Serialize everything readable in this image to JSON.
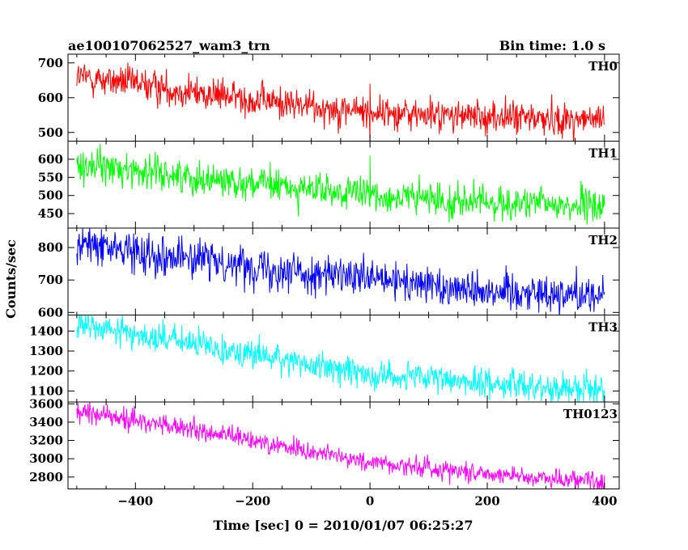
{
  "header": {
    "title": "ae100107062527_wam3_trn",
    "bin_time": "Bin time: 1.0 s"
  },
  "axes": {
    "xlabel": "Time [sec] 0 = 2010/01/07 06:25:27",
    "ylabel": "Counts/sec"
  },
  "chart_data": {
    "type": "line",
    "title": "ae100107062527_wam3_trn",
    "subtitle": "Bin time: 1.0 s",
    "xlabel": "Time [sec] 0 = 2010/01/07 06:25:27",
    "ylabel": "Counts/sec",
    "xlim": [
      -515,
      425
    ],
    "x_ticks": [
      -400,
      -200,
      0,
      200,
      400
    ],
    "x_range": [
      -500,
      400
    ],
    "bin_time_s": 1.0,
    "grid": false,
    "panels": [
      {
        "name": "TH0",
        "color": "#ff0000",
        "ylim": [
          475,
          725
        ],
        "y_ticks": [
          500,
          600,
          700
        ],
        "trend": [
          [
            -500,
            660
          ],
          [
            -400,
            640
          ],
          [
            -300,
            615
          ],
          [
            -200,
            595
          ],
          [
            -100,
            575
          ],
          [
            0,
            560
          ],
          [
            100,
            550
          ],
          [
            200,
            545
          ],
          [
            300,
            540
          ],
          [
            400,
            535
          ]
        ],
        "noise_sigma": 24,
        "spike": {
          "x": 0,
          "low": 470,
          "high": 640
        }
      },
      {
        "name": "TH1",
        "color": "#00ff00",
        "ylim": [
          410,
          650
        ],
        "y_ticks": [
          450,
          500,
          550,
          600
        ],
        "trend": [
          [
            -500,
            585
          ],
          [
            -400,
            570
          ],
          [
            -300,
            550
          ],
          [
            -200,
            535
          ],
          [
            -100,
            515
          ],
          [
            0,
            500
          ],
          [
            100,
            490
          ],
          [
            200,
            480
          ],
          [
            300,
            475
          ],
          [
            400,
            470
          ]
        ],
        "noise_sigma": 23,
        "spike": {
          "x": 0,
          "low": 470,
          "high": 610
        }
      },
      {
        "name": "TH2",
        "color": "#0000ff",
        "ylim": [
          592,
          860
        ],
        "y_ticks": [
          600,
          700,
          800
        ],
        "trend": [
          [
            -500,
            810
          ],
          [
            -400,
            790
          ],
          [
            -300,
            765
          ],
          [
            -200,
            745
          ],
          [
            -100,
            720
          ],
          [
            0,
            700
          ],
          [
            100,
            685
          ],
          [
            200,
            670
          ],
          [
            300,
            660
          ],
          [
            400,
            655
          ]
        ],
        "noise_sigma": 30
      },
      {
        "name": "TH3",
        "color": "#00ffff",
        "ylim": [
          1045,
          1480
        ],
        "y_ticks": [
          1100,
          1200,
          1300,
          1400
        ],
        "trend": [
          [
            -500,
            1430
          ],
          [
            -400,
            1385
          ],
          [
            -300,
            1335
          ],
          [
            -200,
            1285
          ],
          [
            -100,
            1230
          ],
          [
            0,
            1185
          ],
          [
            100,
            1160
          ],
          [
            200,
            1140
          ],
          [
            300,
            1120
          ],
          [
            400,
            1110
          ]
        ],
        "noise_sigma": 37
      },
      {
        "name": "TH0123",
        "color": "#ff00ff",
        "ylim": [
          2670,
          3620
        ],
        "y_ticks": [
          2800,
          3000,
          3200,
          3400,
          3600
        ],
        "trend": [
          [
            -500,
            3520
          ],
          [
            -400,
            3420
          ],
          [
            -300,
            3310
          ],
          [
            -200,
            3200
          ],
          [
            -100,
            3080
          ],
          [
            0,
            2960
          ],
          [
            100,
            2900
          ],
          [
            200,
            2840
          ],
          [
            300,
            2790
          ],
          [
            400,
            2760
          ]
        ],
        "noise_sigma": 55
      }
    ]
  }
}
